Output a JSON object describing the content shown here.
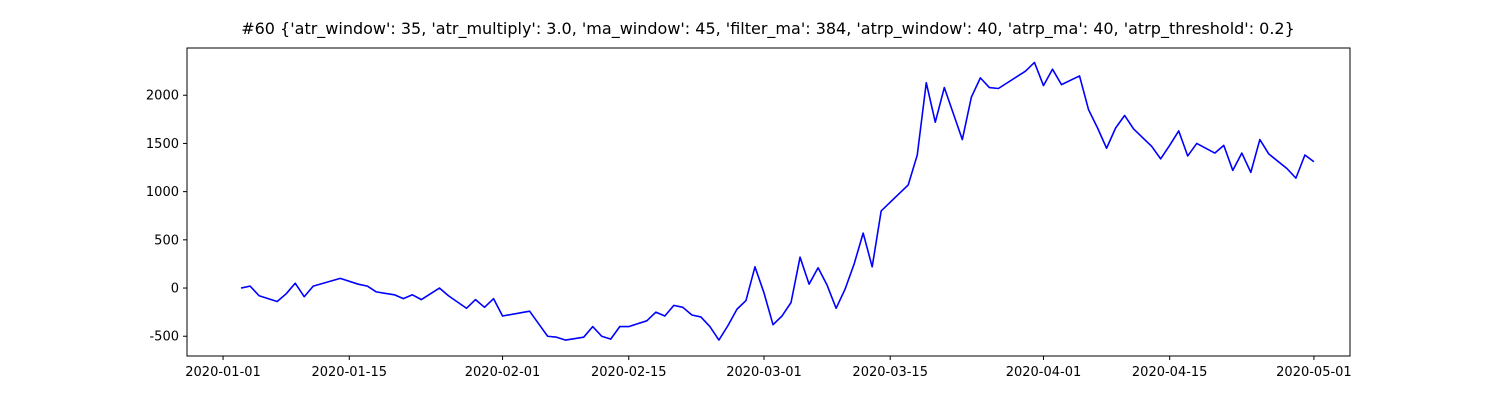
{
  "chart_data": {
    "type": "line",
    "title": "#60 {'atr_window': 35, 'atr_multiply': 3.0, 'ma_window': 45, 'filter_ma': 384, 'atrp_window': 40, 'atrp_ma': 40, 'atrp_threshold': 0.2}",
    "color": "#0000ff",
    "x": [
      "2020-01-03",
      "2020-01-04",
      "2020-01-05",
      "2020-01-07",
      "2020-01-08",
      "2020-01-09",
      "2020-01-10",
      "2020-01-11",
      "2020-01-14",
      "2020-01-16",
      "2020-01-17",
      "2020-01-18",
      "2020-01-20",
      "2020-01-21",
      "2020-01-22",
      "2020-01-23",
      "2020-01-25",
      "2020-01-26",
      "2020-01-28",
      "2020-01-29",
      "2020-01-30",
      "2020-01-31",
      "2020-02-01",
      "2020-02-04",
      "2020-02-05",
      "2020-02-06",
      "2020-02-07",
      "2020-02-08",
      "2020-02-10",
      "2020-02-11",
      "2020-02-12",
      "2020-02-13",
      "2020-02-14",
      "2020-02-15",
      "2020-02-17",
      "2020-02-18",
      "2020-02-19",
      "2020-02-20",
      "2020-02-21",
      "2020-02-22",
      "2020-02-23",
      "2020-02-24",
      "2020-02-25",
      "2020-02-26",
      "2020-02-27",
      "2020-02-28",
      "2020-02-29",
      "2020-03-01",
      "2020-03-02",
      "2020-03-03",
      "2020-03-04",
      "2020-03-05",
      "2020-03-06",
      "2020-03-07",
      "2020-03-08",
      "2020-03-09",
      "2020-03-10",
      "2020-03-11",
      "2020-03-12",
      "2020-03-13",
      "2020-03-14",
      "2020-03-17",
      "2020-03-18",
      "2020-03-19",
      "2020-03-20",
      "2020-03-21",
      "2020-03-23",
      "2020-03-24",
      "2020-03-25",
      "2020-03-26",
      "2020-03-27",
      "2020-03-30",
      "2020-03-31",
      "2020-04-01",
      "2020-04-02",
      "2020-04-03",
      "2020-04-05",
      "2020-04-06",
      "2020-04-07",
      "2020-04-08",
      "2020-04-09",
      "2020-04-10",
      "2020-04-11",
      "2020-04-13",
      "2020-04-14",
      "2020-04-15",
      "2020-04-16",
      "2020-04-17",
      "2020-04-18",
      "2020-04-20",
      "2020-04-21",
      "2020-04-22",
      "2020-04-23",
      "2020-04-24",
      "2020-04-25",
      "2020-04-26",
      "2020-04-28",
      "2020-04-29",
      "2020-04-30",
      "2020-05-01"
    ],
    "values": [
      0,
      20,
      -80,
      -140,
      -60,
      50,
      -90,
      20,
      100,
      40,
      20,
      -40,
      -70,
      -110,
      -70,
      -120,
      0,
      -80,
      -210,
      -120,
      -200,
      -110,
      -290,
      -240,
      -370,
      -500,
      -510,
      -540,
      -510,
      -400,
      -500,
      -530,
      -400,
      -400,
      -340,
      -250,
      -290,
      -180,
      -200,
      -280,
      -300,
      -400,
      -540,
      -390,
      -220,
      -130,
      220,
      -50,
      -380,
      -290,
      -150,
      320,
      40,
      210,
      30,
      -210,
      -10,
      250,
      570,
      220,
      800,
      1070,
      1380,
      2130,
      1720,
      2080,
      1540,
      1980,
      2180,
      2080,
      2070,
      2250,
      2340,
      2100,
      2270,
      2110,
      2200,
      1850,
      1660,
      1450,
      1660,
      1790,
      1650,
      1470,
      1340,
      1480,
      1630,
      1370,
      1500,
      1400,
      1480,
      1220,
      1400,
      1200,
      1540,
      1390,
      1240,
      1140,
      1380,
      1310
    ],
    "xlim": [
      "2019-12-28",
      "2020-05-05"
    ],
    "xticks": [
      "2020-01-01",
      "2020-01-15",
      "2020-02-01",
      "2020-02-15",
      "2020-03-01",
      "2020-03-15",
      "2020-04-01",
      "2020-04-15",
      "2020-05-01"
    ],
    "ylim": [
      -705,
      2490
    ],
    "yticks": [
      -500,
      0,
      500,
      1000,
      1500,
      2000
    ],
    "grid": false
  }
}
